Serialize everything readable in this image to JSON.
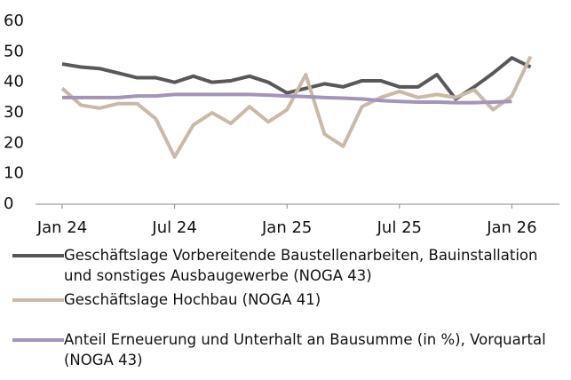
{
  "chart_data": {
    "type": "line",
    "categories": [
      "Jan 24",
      null,
      null,
      null,
      null,
      null,
      "Jul 24",
      null,
      null,
      null,
      null,
      null,
      "Jan 25",
      null,
      null,
      null,
      null,
      null,
      "Jul 25",
      null,
      null,
      null,
      null,
      null,
      "Jan 26",
      null
    ],
    "series": [
      {
        "name": "Geschäftslage Vorbereitende Baustellenarbeiten, Bauinstallation und sonstiges Ausbaugewerbe (NOGA 43)",
        "color": "#58585a",
        "values": [
          46,
          45,
          44.5,
          43,
          41.5,
          41.5,
          40,
          42,
          40,
          40.5,
          42,
          40,
          36.5,
          38,
          39.5,
          38.5,
          40.5,
          40.5,
          38.5,
          38.5,
          42.5,
          34.5,
          38.5,
          43,
          48,
          45
        ]
      },
      {
        "name": "Geschäftslage Hochbau (NOGA 41)",
        "color": "#c9b9a6",
        "values": [
          38,
          32.5,
          31.5,
          33,
          33,
          28,
          15.5,
          26,
          30,
          26.5,
          32,
          27,
          31,
          42.5,
          23,
          19,
          32,
          35,
          37,
          35,
          36,
          35,
          37.5,
          31,
          35.5,
          48.5
        ]
      },
      {
        "name": "Anteil Erneuerung und Unterhalt an Bausumme (in %), Vorquartal (NOGA 43)",
        "color": "#a394b8",
        "values": [
          35,
          35,
          35,
          35,
          35.5,
          35.5,
          36,
          36,
          36,
          36,
          36,
          35.8,
          35.5,
          35.3,
          35,
          34.8,
          34.5,
          34,
          33.7,
          33.5,
          33.5,
          33.3,
          33.3,
          33.5,
          33.7,
          null
        ]
      }
    ],
    "ylim": [
      0,
      60
    ],
    "yticks": [
      0,
      10,
      20,
      30,
      40,
      50,
      60
    ],
    "grid": false
  }
}
